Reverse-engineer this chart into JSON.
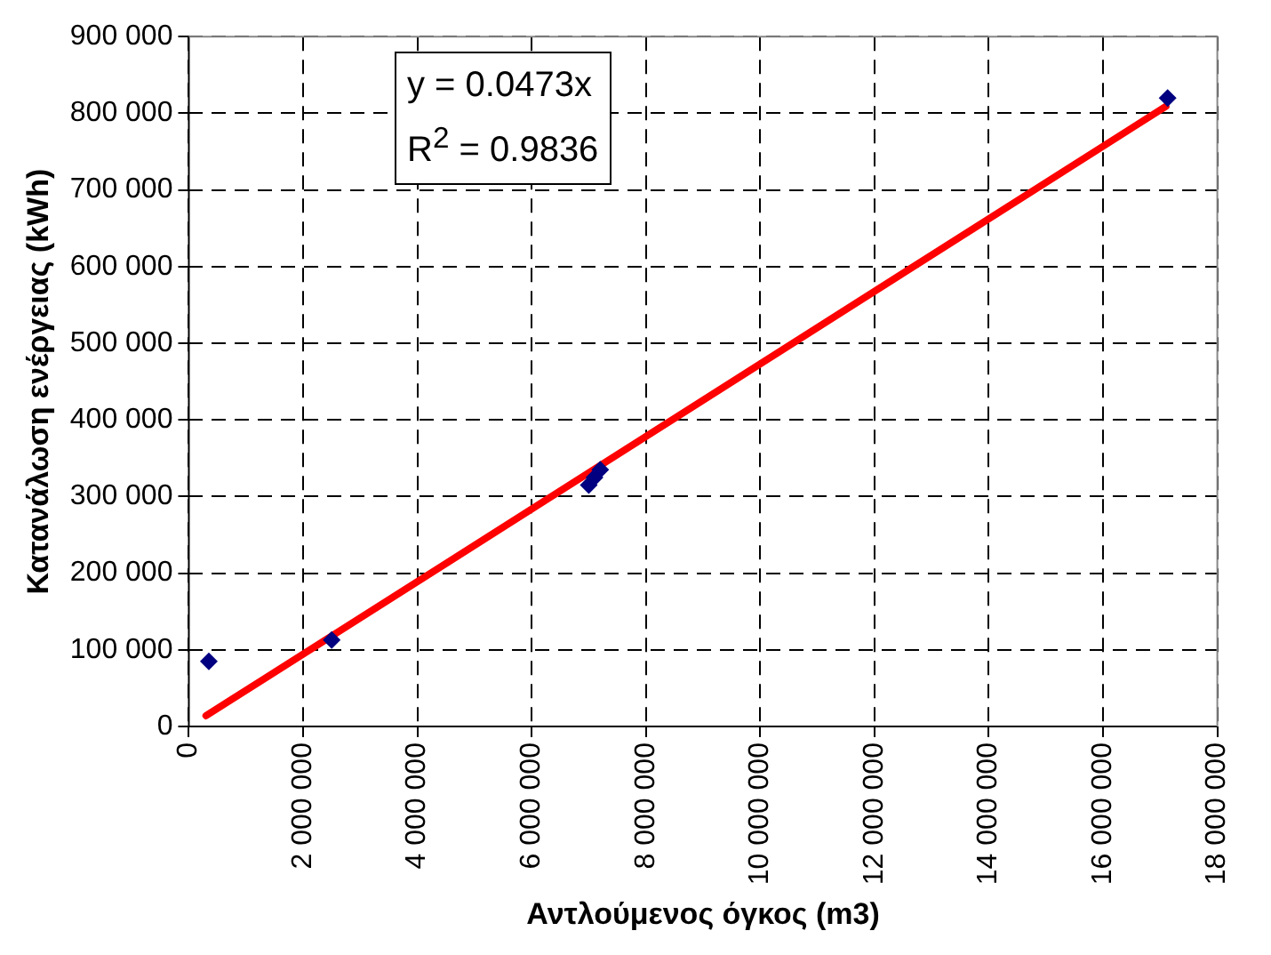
{
  "chart_data": {
    "type": "scatter",
    "xlabel": "Αντλούμενος όγκος (m3)",
    "ylabel": "Κατανάλωση ενέργειας (kWh)",
    "annotations": [
      "y = 0.0473x",
      "R$^{2}$ = 0.9836"
    ],
    "xlim": [
      0,
      18000000
    ],
    "ylim": [
      0,
      900000
    ],
    "xticks": [
      0,
      {
        "value": 2000000,
        "label": "2 000 000"
      },
      {
        "value": 4000000,
        "label": "4 000 000"
      },
      {
        "value": 6000000,
        "label": "6 000 000"
      },
      {
        "value": 8000000,
        "label": "8 000 000"
      },
      {
        "value": 10000000,
        "label": "10 000 000"
      },
      {
        "value": 12000000,
        "label": "12 000 000"
      },
      {
        "value": 14000000,
        "label": "14 000 000"
      },
      {
        "value": 16000000,
        "label": "16 000 000"
      },
      {
        "value": 18000000,
        "label": "18 000 000"
      }
    ],
    "yticks": [
      0,
      {
        "value": 100000,
        "label": "100 000"
      },
      {
        "value": 200000,
        "label": "200 000"
      },
      {
        "value": 300000,
        "label": "300 000"
      },
      {
        "value": 400000,
        "label": "400 000"
      },
      {
        "value": 500000,
        "label": "500 000"
      },
      {
        "value": 600000,
        "label": "600 000"
      },
      {
        "value": 700000,
        "label": "700 000"
      },
      {
        "value": 800000,
        "label": "800 000"
      },
      {
        "value": 900000,
        "label": "900 000"
      }
    ],
    "grid": true,
    "legend": false,
    "series": [
      {
        "type": "scatter",
        "color": "#000080",
        "marker": "diamond",
        "x": [
          350000,
          2500000,
          7000000,
          7100000,
          7200000,
          17130000
        ],
        "values": [
          85000,
          113000,
          315000,
          325000,
          335000,
          820000
        ]
      },
      {
        "type": "line",
        "color": "#ff0000",
        "marker": "none",
        "line_style": "solid",
        "x": [
          300000,
          17100000
        ],
        "values": [
          14000,
          809000
        ]
      }
    ]
  }
}
